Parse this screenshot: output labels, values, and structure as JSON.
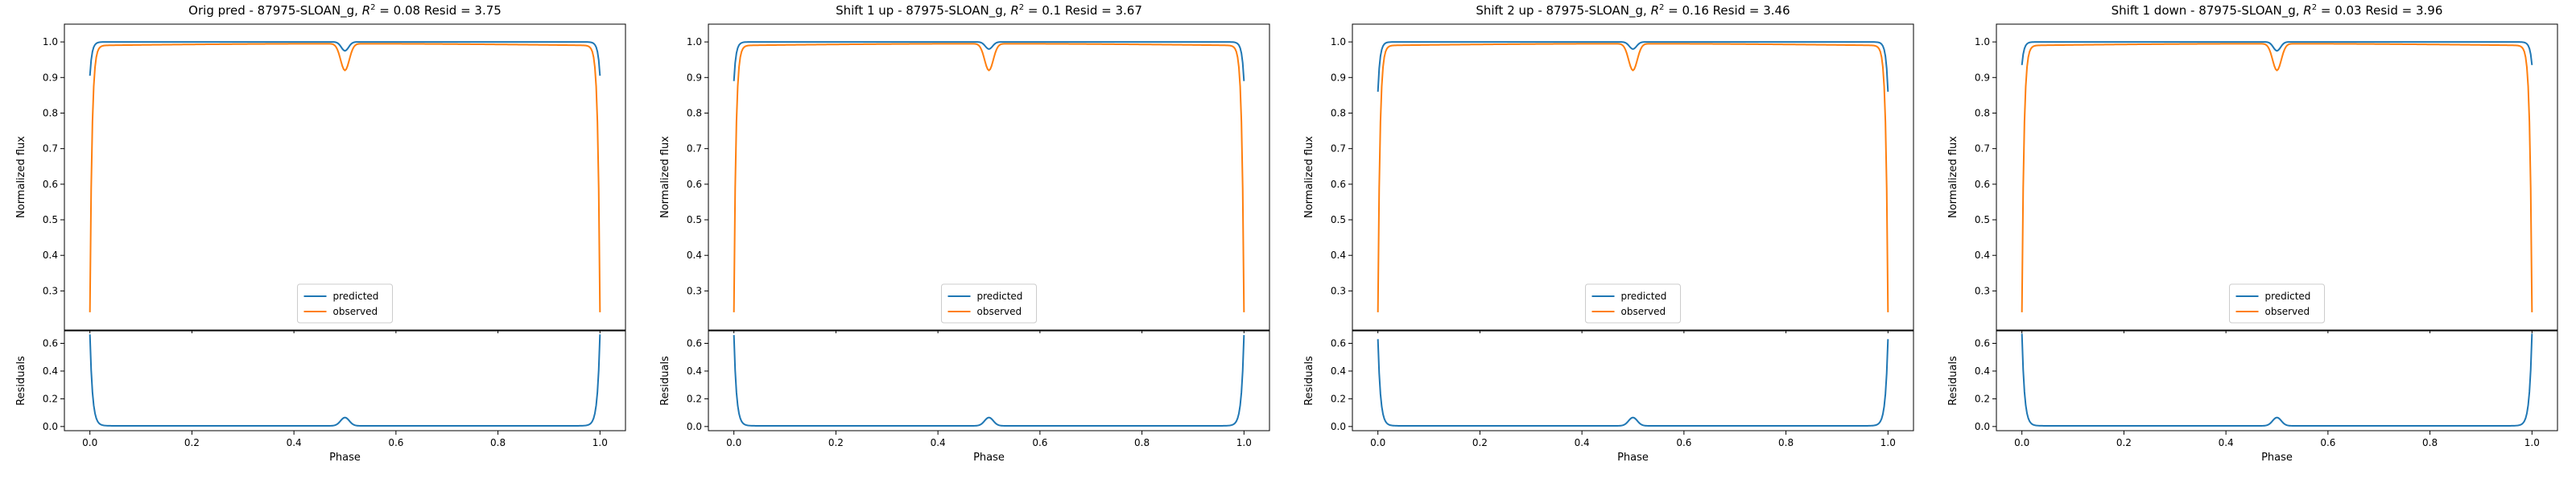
{
  "colors": {
    "predicted": "#1f77b4",
    "observed": "#ff7f0e"
  },
  "chart_data": [
    {
      "type": "line",
      "title": "Orig pred - 87975-SLOAN_g, $R^2 = 0.08$ Resid = 3.75",
      "title_parts": {
        "prefix": "Orig pred - 87975-SLOAN_g, ",
        "r2_value": "0.08",
        "suffix": " Resid = 3.75"
      },
      "xlabel": "Phase",
      "ylabel": "Normalized flux",
      "resid_ylabel": "Residuals",
      "xlim": [
        -0.05,
        1.05
      ],
      "ylim": [
        0.19,
        1.05
      ],
      "resid_ylim": [
        -0.03,
        0.69
      ],
      "xticks": [
        "0.0",
        "0.2",
        "0.4",
        "0.6",
        "0.8",
        "1.0"
      ],
      "yticks": [
        "0.3",
        "0.4",
        "0.5",
        "0.6",
        "0.7",
        "0.8",
        "0.9",
        "1.0"
      ],
      "resid_yticks": [
        "0.0",
        "0.2",
        "0.4",
        "0.6"
      ],
      "legend": [
        "predicted",
        "observed"
      ],
      "predicted_edge": 0.905,
      "dip_depth": 0.025,
      "resid_edge": 0.66
    },
    {
      "type": "line",
      "title": "Shift 1 up - 87975-SLOAN_g, $R^2 = 0.1$ Resid = 3.67",
      "title_parts": {
        "prefix": "Shift 1 up - 87975-SLOAN_g, ",
        "r2_value": "0.1",
        "suffix": " Resid = 3.67"
      },
      "xlabel": "Phase",
      "ylabel": "Normalized flux",
      "resid_ylabel": "Residuals",
      "xlim": [
        -0.05,
        1.05
      ],
      "ylim": [
        0.19,
        1.05
      ],
      "resid_ylim": [
        -0.03,
        0.69
      ],
      "xticks": [
        "0.0",
        "0.2",
        "0.4",
        "0.6",
        "0.8",
        "1.0"
      ],
      "yticks": [
        "0.3",
        "0.4",
        "0.5",
        "0.6",
        "0.7",
        "0.8",
        "0.9",
        "1.0"
      ],
      "resid_yticks": [
        "0.0",
        "0.2",
        "0.4",
        "0.6"
      ],
      "legend": [
        "predicted",
        "observed"
      ],
      "predicted_edge": 0.89,
      "dip_depth": 0.02,
      "resid_edge": 0.655
    },
    {
      "type": "line",
      "title": "Shift 2 up - 87975-SLOAN_g, $R^2 = 0.16$ Resid = 3.46",
      "title_parts": {
        "prefix": "Shift 2 up - 87975-SLOAN_g, ",
        "r2_value": "0.16",
        "suffix": " Resid = 3.46"
      },
      "xlabel": "Phase",
      "ylabel": "Normalized flux",
      "resid_ylabel": "Residuals",
      "xlim": [
        -0.05,
        1.05
      ],
      "ylim": [
        0.19,
        1.05
      ],
      "resid_ylim": [
        -0.03,
        0.69
      ],
      "xticks": [
        "0.0",
        "0.2",
        "0.4",
        "0.6",
        "0.8",
        "1.0"
      ],
      "yticks": [
        "0.3",
        "0.4",
        "0.5",
        "0.6",
        "0.7",
        "0.8",
        "0.9",
        "1.0"
      ],
      "resid_yticks": [
        "0.0",
        "0.2",
        "0.4",
        "0.6"
      ],
      "legend": [
        "predicted",
        "observed"
      ],
      "predicted_edge": 0.86,
      "dip_depth": 0.02,
      "resid_edge": 0.625
    },
    {
      "type": "line",
      "title": "Shift 1 down - 87975-SLOAN_g, $R^2 = 0.03$ Resid = 3.96",
      "title_parts": {
        "prefix": "Shift 1 down - 87975-SLOAN_g, ",
        "r2_value": "0.03",
        "suffix": " Resid = 3.96"
      },
      "xlabel": "Phase",
      "ylabel": "Normalized flux",
      "resid_ylabel": "Residuals",
      "xlim": [
        -0.05,
        1.05
      ],
      "ylim": [
        0.19,
        1.05
      ],
      "resid_ylim": [
        -0.03,
        0.69
      ],
      "xticks": [
        "0.0",
        "0.2",
        "0.4",
        "0.6",
        "0.8",
        "1.0"
      ],
      "yticks": [
        "0.3",
        "0.4",
        "0.5",
        "0.6",
        "0.7",
        "0.8",
        "0.9",
        "1.0"
      ],
      "resid_yticks": [
        "0.0",
        "0.2",
        "0.4",
        "0.6"
      ],
      "legend": [
        "predicted",
        "observed"
      ],
      "predicted_edge": 0.935,
      "dip_depth": 0.025,
      "resid_edge": 0.665
    }
  ]
}
